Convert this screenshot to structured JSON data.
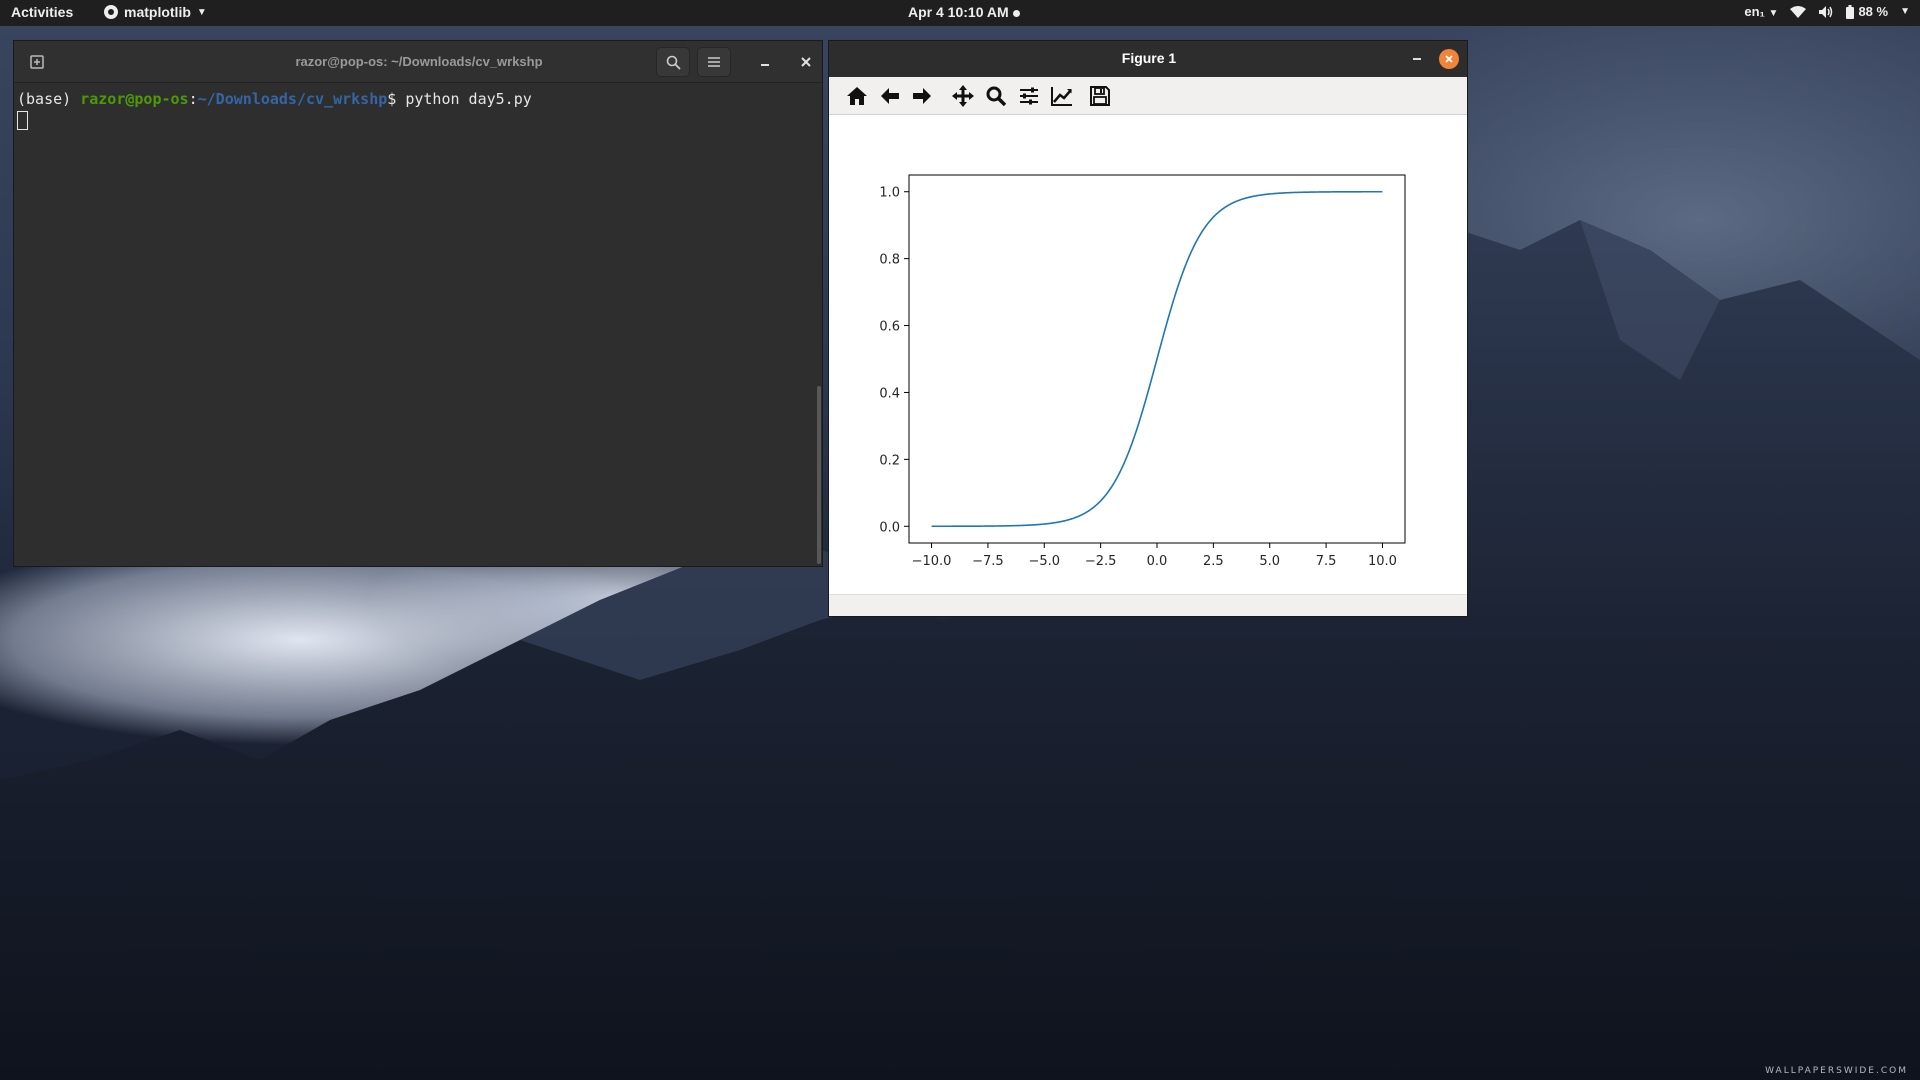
{
  "topbar": {
    "activities": "Activities",
    "app_name": "matplotlib",
    "clock": "Apr 4  10:10 AM",
    "language": "en₁",
    "battery": "88 %"
  },
  "terminal": {
    "title": "razor@pop-os: ~/Downloads/cv_wrkshp",
    "prompt_env": "(base) ",
    "prompt_user": "razor@pop-os",
    "prompt_sep": ":",
    "prompt_path": "~/Downloads/cv_wrkshp",
    "prompt_dollar": "$ ",
    "command": "python day5.py"
  },
  "figure": {
    "title": "Figure 1",
    "toolbar": [
      "home-icon",
      "back-arrow-icon",
      "forward-arrow-icon",
      "pan-icon",
      "zoom-icon",
      "subplots-icon",
      "edit-axis-icon",
      "save-icon"
    ]
  },
  "desktop": {
    "watermark": "WALLPAPERSWIDE.COM"
  },
  "chart_data": {
    "type": "line",
    "function": "sigmoid",
    "x": [
      -10.0,
      -8.0,
      -6.0,
      -5.0,
      -4.0,
      -3.0,
      -2.5,
      -2.0,
      -1.5,
      -1.0,
      -0.5,
      0.0,
      0.5,
      1.0,
      1.5,
      2.0,
      2.5,
      3.0,
      4.0,
      5.0,
      6.0,
      8.0,
      10.0
    ],
    "y": [
      0.0,
      0.0003,
      0.0025,
      0.0067,
      0.018,
      0.047,
      0.076,
      0.119,
      0.182,
      0.269,
      0.378,
      0.5,
      0.622,
      0.731,
      0.818,
      0.881,
      0.924,
      0.953,
      0.982,
      0.993,
      0.9975,
      0.9997,
      1.0
    ],
    "xlim": [
      -11.0,
      11.0
    ],
    "ylim": [
      -0.05,
      1.05
    ],
    "xticks": [
      "−10.0",
      "−7.5",
      "−5.0",
      "−2.5",
      "0.0",
      "2.5",
      "5.0",
      "7.5",
      "10.0"
    ],
    "xtick_values": [
      -10.0,
      -7.5,
      -5.0,
      -2.5,
      0.0,
      2.5,
      5.0,
      7.5,
      10.0
    ],
    "yticks": [
      "0.0",
      "0.2",
      "0.4",
      "0.6",
      "0.8",
      "1.0"
    ],
    "ytick_values": [
      0.0,
      0.2,
      0.4,
      0.6,
      0.8,
      1.0
    ],
    "line_color": "#1f77b4",
    "grid": false,
    "title": "",
    "xlabel": "",
    "ylabel": ""
  }
}
